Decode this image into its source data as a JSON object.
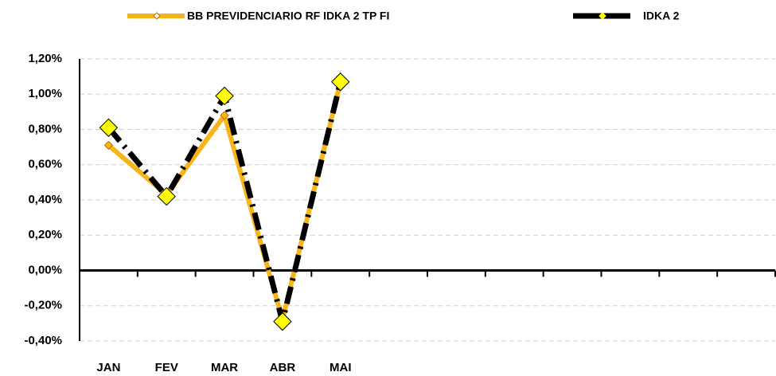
{
  "chart_data": {
    "type": "line",
    "categories": [
      "JAN",
      "FEV",
      "MAR",
      "ABR",
      "MAI",
      null,
      null,
      null,
      null,
      null,
      null,
      null
    ],
    "series": [
      {
        "name": "BB PREVIDENCIARIO RF IDKA 2 TP FI",
        "color": "#f7b519",
        "values": [
          0.71,
          0.43,
          0.88,
          -0.28,
          1.07,
          null,
          null,
          null,
          null,
          null,
          null,
          null
        ]
      },
      {
        "name": "IDKA 2",
        "color": "#000000",
        "values": [
          0.81,
          0.42,
          0.99,
          -0.29,
          1.07,
          null,
          null,
          null,
          null,
          null,
          null,
          null
        ]
      }
    ],
    "ylim": [
      -0.4,
      1.2
    ],
    "yticks": [
      {
        "value": -0.4,
        "label": "-0,40%"
      },
      {
        "value": -0.2,
        "label": "-0,20%"
      },
      {
        "value": 0,
        "label": "0,00%"
      },
      {
        "value": 0.2,
        "label": "0,20%"
      },
      {
        "value": 0.4,
        "label": "0,40%"
      },
      {
        "value": 0.6,
        "label": "0,60%"
      },
      {
        "value": 0.8,
        "label": "0,80%"
      },
      {
        "value": 1.0,
        "label": "1,00%"
      },
      {
        "value": 1.2,
        "label": "1,20%"
      }
    ],
    "grid": true,
    "legend": "top"
  }
}
